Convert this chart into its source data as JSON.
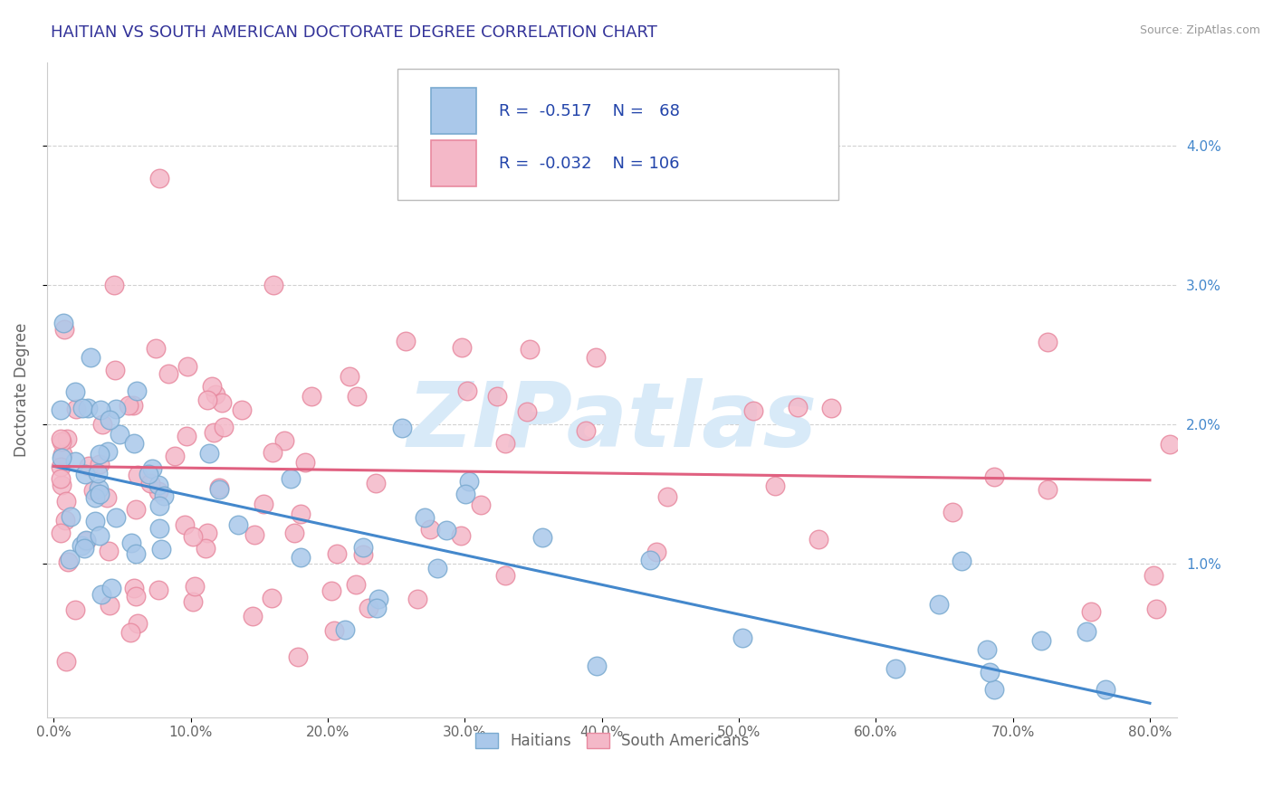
{
  "title": "HAITIAN VS SOUTH AMERICAN DOCTORATE DEGREE CORRELATION CHART",
  "source": "Source: ZipAtlas.com",
  "ylabel": "Doctorate Degree",
  "xlim": [
    -0.005,
    0.82
  ],
  "ylim": [
    -0.001,
    0.046
  ],
  "xticks": [
    0.0,
    0.1,
    0.2,
    0.3,
    0.4,
    0.5,
    0.6,
    0.7,
    0.8
  ],
  "xticklabels": [
    "0.0%",
    "10.0%",
    "20.0%",
    "30.0%",
    "40.0%",
    "50.0%",
    "60.0%",
    "70.0%",
    "80.0%"
  ],
  "yticks": [
    0.01,
    0.02,
    0.03,
    0.04
  ],
  "yticklabels": [
    "1.0%",
    "2.0%",
    "3.0%",
    "4.0%"
  ],
  "haitian_color": "#aac8ea",
  "south_american_color": "#f4b8c8",
  "haitian_edge_color": "#7aaad0",
  "south_american_edge_color": "#e88aa0",
  "haitian_line_color": "#4488cc",
  "south_american_line_color": "#e06080",
  "watermark_text": "ZIPatlas",
  "watermark_color": "#d8eaf8",
  "background_color": "#ffffff",
  "grid_color": "#cccccc",
  "title_color": "#333399",
  "axis_label_color": "#666666",
  "tick_label_color": "#4488cc",
  "legend_text_color": "#2244aa",
  "haitian_R": -0.517,
  "haitian_N": 68,
  "south_american_R": -0.032,
  "south_american_N": 106,
  "haitian_line_start_y": 0.017,
  "haitian_line_end_y": 0.0,
  "south_american_line_start_y": 0.017,
  "south_american_line_end_y": 0.016
}
